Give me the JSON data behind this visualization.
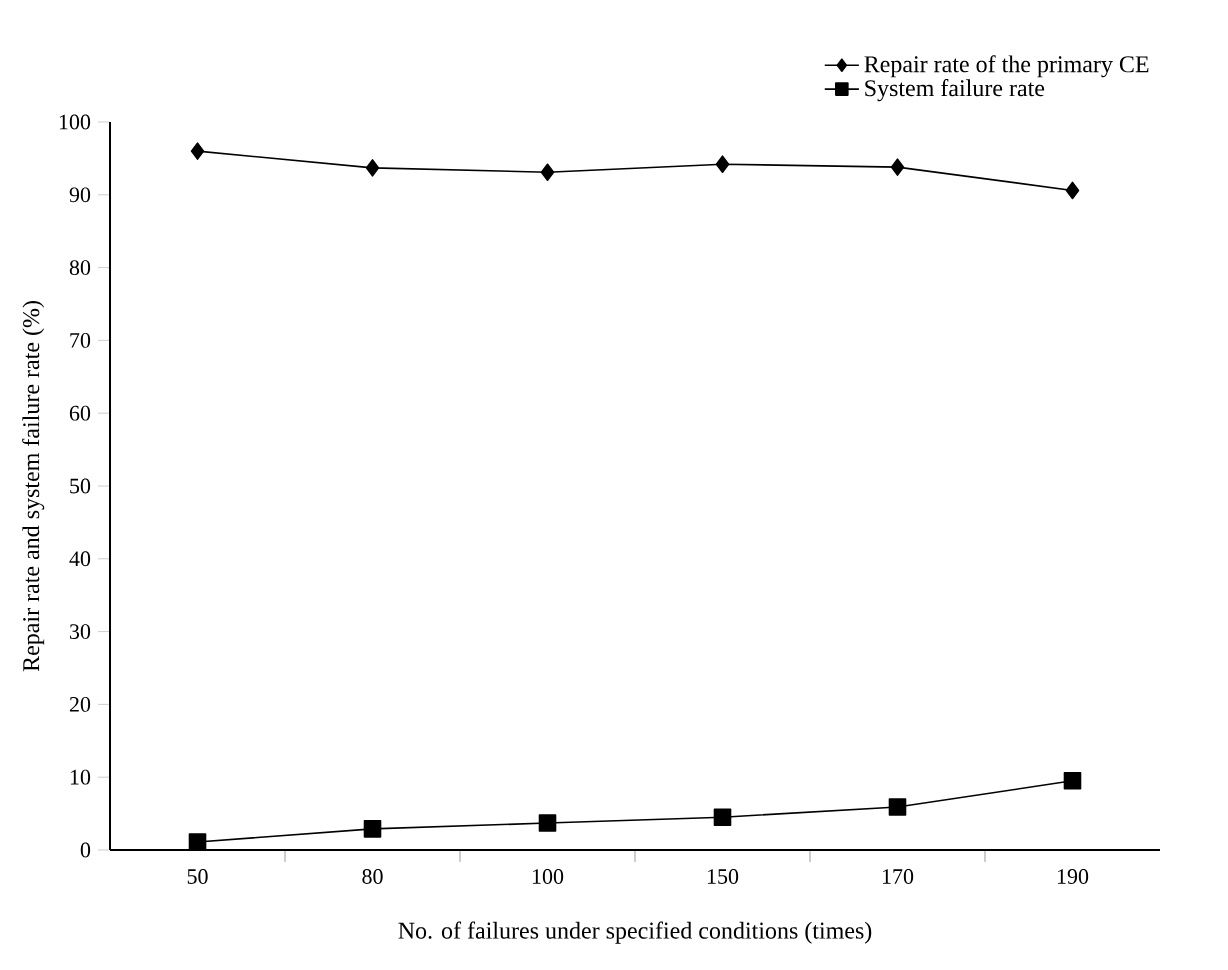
{
  "chart_data": {
    "type": "line",
    "xlabel": "No. of failures under specified conditions (times)",
    "ylabel": "Repair rate and system failure rate (%)",
    "categories": [
      "50",
      "80",
      "100",
      "150",
      "170",
      "190"
    ],
    "series": [
      {
        "name": "Repair rate of the primary CE",
        "color": "#000000",
        "marker": "diamond",
        "values": [
          96.0,
          93.7,
          93.1,
          94.2,
          93.8,
          90.6
        ]
      },
      {
        "name": "System failure rate",
        "color": "#000000",
        "marker": "square",
        "values": [
          1.1,
          2.9,
          3.7,
          4.5,
          5.9,
          9.5
        ]
      }
    ],
    "ylim": [
      0,
      100
    ],
    "yticks": [
      0,
      10,
      20,
      30,
      40,
      50,
      60,
      70,
      80,
      90,
      100
    ],
    "grid": false,
    "legend": "top right",
    "line_style": "solid"
  }
}
